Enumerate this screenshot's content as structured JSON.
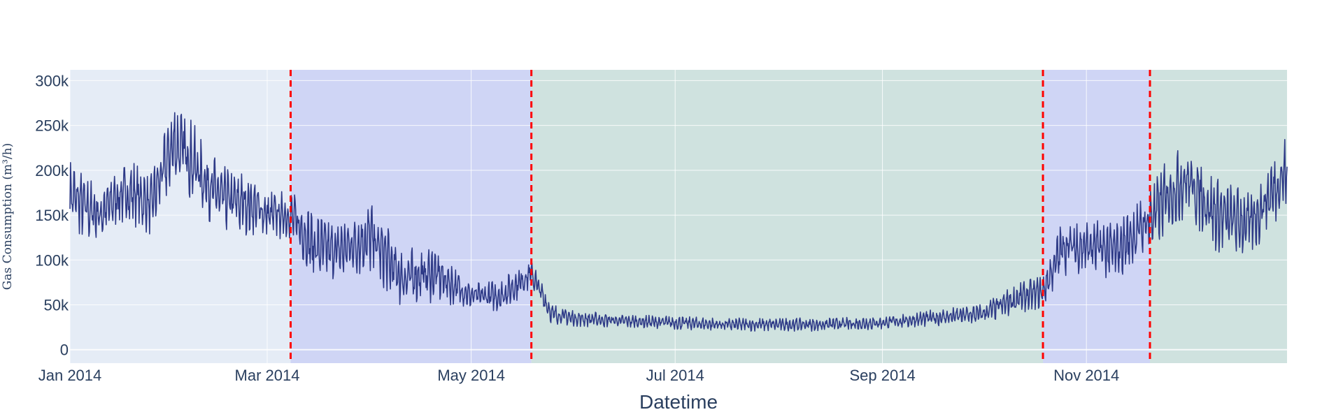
{
  "chart_data": {
    "type": "line",
    "title": "",
    "xlabel": "Datetime",
    "ylabel": "Gas Consumption (m³/h)",
    "xlim": [
      "2014-01-01",
      "2014-12-31"
    ],
    "ylim": [
      -15000,
      312000
    ],
    "x_ticks": [
      {
        "date": "2014-01-01",
        "label": "Jan 2014"
      },
      {
        "date": "2014-03-01",
        "label": "Mar 2014"
      },
      {
        "date": "2014-05-01",
        "label": "May 2014"
      },
      {
        "date": "2014-07-01",
        "label": "Jul 2014"
      },
      {
        "date": "2014-09-01",
        "label": "Sep 2014"
      },
      {
        "date": "2014-11-01",
        "label": "Nov 2014"
      }
    ],
    "y_ticks": [
      {
        "value": 0,
        "label": "0"
      },
      {
        "value": 50000,
        "label": "50k"
      },
      {
        "value": 100000,
        "label": "100k"
      },
      {
        "value": 150000,
        "label": "150k"
      },
      {
        "value": 200000,
        "label": "200k"
      },
      {
        "value": 250000,
        "label": "250k"
      },
      {
        "value": 300000,
        "label": "300k"
      }
    ],
    "grid": true,
    "legend": "none",
    "colors": {
      "line": "#2e3a87",
      "regime_split": "#ff0000",
      "plot_bg": "#e5ecf6",
      "region_blue": "#cfd5f5",
      "region_green": "#cfe2df"
    },
    "regions": [
      {
        "start": "2014-03-08",
        "end": "2014-05-19",
        "color": "#cfd5f5"
      },
      {
        "start": "2014-05-19",
        "end": "2014-10-19",
        "color": "#cfe2df"
      },
      {
        "start": "2014-10-19",
        "end": "2014-11-20",
        "color": "#cfd5f5"
      },
      {
        "start": "2014-11-20",
        "end": "2014-12-31",
        "color": "#cfe2df"
      }
    ],
    "change_points": [
      "2014-03-08",
      "2014-05-19",
      "2014-10-19",
      "2014-11-20"
    ],
    "series": [
      {
        "values_description_none": "",
        "x": [
          "2014-01-01",
          "2014-01-05",
          "2014-01-10",
          "2014-01-15",
          "2014-01-20",
          "2014-01-25",
          "2014-02-01",
          "2014-02-05",
          "2014-02-10",
          "2014-02-15",
          "2014-02-20",
          "2014-02-25",
          "2014-03-01",
          "2014-03-08",
          "2014-03-15",
          "2014-03-22",
          "2014-04-01",
          "2014-04-10",
          "2014-04-20",
          "2014-05-01",
          "2014-05-10",
          "2014-05-19",
          "2014-05-25",
          "2014-06-01",
          "2014-06-15",
          "2014-07-01",
          "2014-07-15",
          "2014-08-01",
          "2014-08-15",
          "2014-09-01",
          "2014-09-15",
          "2014-10-01",
          "2014-10-10",
          "2014-10-19",
          "2014-10-25",
          "2014-11-01",
          "2014-11-10",
          "2014-11-20",
          "2014-11-25",
          "2014-12-01",
          "2014-12-10",
          "2014-12-20",
          "2014-12-31"
        ],
        "y": [
          175000,
          160000,
          150000,
          170000,
          175000,
          160000,
          230000,
          220000,
          190000,
          170000,
          165000,
          160000,
          150000,
          150000,
          115000,
          110000,
          125000,
          80000,
          85000,
          60000,
          60000,
          85000,
          40000,
          35000,
          32000,
          30000,
          28000,
          28000,
          28000,
          30000,
          35000,
          40000,
          55000,
          65000,
          115000,
          115000,
          110000,
          145000,
          170000,
          190000,
          150000,
          140000,
          200000
        ],
        "amp": [
          40000,
          40000,
          35000,
          35000,
          40000,
          35000,
          50000,
          50000,
          45000,
          40000,
          40000,
          35000,
          30000,
          30000,
          40000,
          35000,
          45000,
          35000,
          35000,
          15000,
          20000,
          20000,
          12000,
          10000,
          8000,
          8000,
          8000,
          8000,
          8000,
          8000,
          10000,
          12000,
          18000,
          20000,
          35000,
          35000,
          35000,
          40000,
          45000,
          45000,
          45000,
          40000,
          45000
        ]
      }
    ]
  }
}
